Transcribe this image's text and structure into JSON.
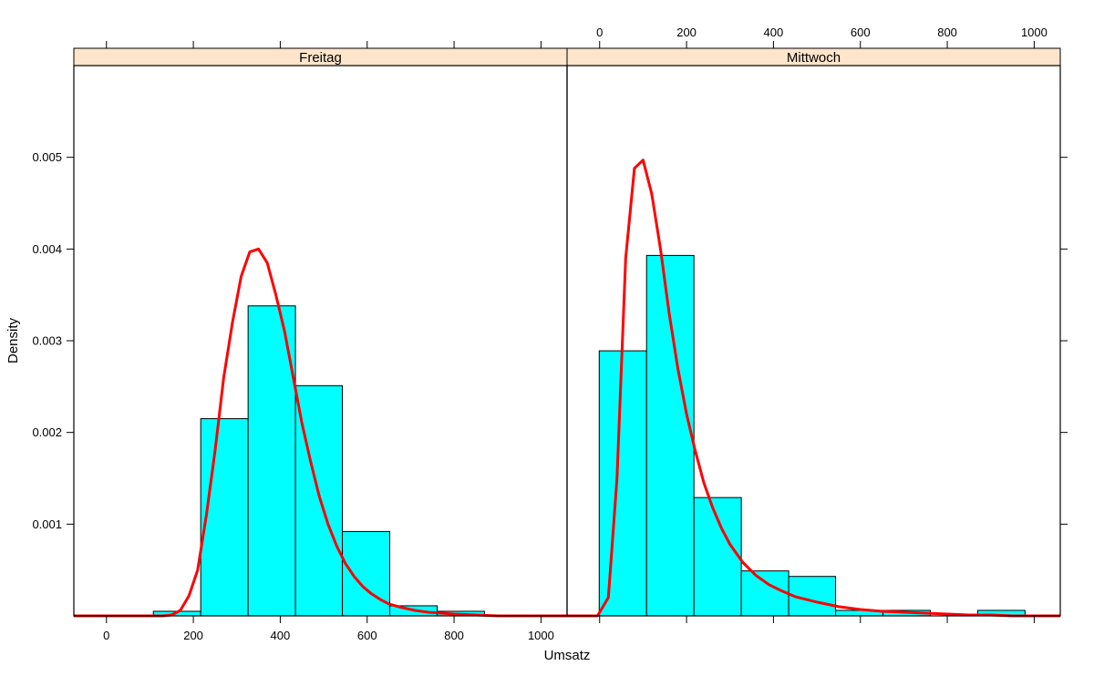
{
  "chart_data": {
    "type": "bar",
    "subtype": "lattice histogram with density curves",
    "xlabel": "Umsatz",
    "ylabel": "Density",
    "xlim": [
      -75,
      1060
    ],
    "ylim": [
      0,
      0.006
    ],
    "x_ticks": [
      0,
      200,
      400,
      600,
      800,
      1000
    ],
    "y_ticks": [
      0.001,
      0.002,
      0.003,
      0.004,
      0.005
    ],
    "y_tick_labels": [
      "0.001",
      "0.002",
      "0.003",
      "0.004",
      "0.005"
    ],
    "bin_edges": [
      -1,
      108,
      217,
      326,
      435,
      543,
      652,
      761,
      870,
      979
    ],
    "colors": {
      "bars": "#00ffff",
      "curve": "#ff0000",
      "strip": "#ffe5cc"
    },
    "panels": [
      {
        "strip": "Freitag",
        "x_ticks_shown": "bottom",
        "bar_values": [
          0,
          5e-05,
          0.00215,
          0.00338,
          0.00251,
          0.00092,
          0.00011,
          5e-05,
          0
        ],
        "curve": {
          "x": [
            -75,
            0,
            50,
            100,
            130,
            150,
            170,
            190,
            210,
            230,
            250,
            270,
            290,
            310,
            330,
            350,
            370,
            390,
            410,
            430,
            450,
            470,
            490,
            510,
            530,
            550,
            570,
            590,
            610,
            630,
            650,
            680,
            710,
            740,
            770,
            800,
            850,
            900,
            950,
            1060
          ],
          "y": [
            0,
            0,
            0,
            0,
            0,
            1e-05,
            6e-05,
            0.00022,
            0.0005,
            0.0011,
            0.0018,
            0.0026,
            0.0032,
            0.0037,
            0.00397,
            0.004,
            0.00385,
            0.0035,
            0.0031,
            0.0026,
            0.0021,
            0.00168,
            0.0013,
            0.001,
            0.00076,
            0.00057,
            0.00043,
            0.00032,
            0.00024,
            0.00018,
            0.00013,
            9e-05,
            6e-05,
            4e-05,
            3e-05,
            2e-05,
            1e-05,
            0,
            0,
            0
          ]
        }
      },
      {
        "strip": "Mittwoch",
        "x_ticks_shown": "top",
        "bar_values": [
          0.00289,
          0.00393,
          0.00129,
          0.00049,
          0.00043,
          6e-05,
          6e-05,
          0,
          6e-05
        ],
        "curve": {
          "x": [
            -75,
            -5,
            20,
            40,
            60,
            80,
            100,
            120,
            140,
            160,
            180,
            200,
            220,
            240,
            260,
            280,
            300,
            330,
            360,
            390,
            420,
            450,
            500,
            550,
            600,
            650,
            700,
            750,
            800,
            850,
            900,
            950,
            1000,
            1060
          ],
          "y": [
            0,
            0,
            0.0002,
            0.0015,
            0.0039,
            0.00488,
            0.00497,
            0.0046,
            0.004,
            0.0033,
            0.0027,
            0.0022,
            0.0018,
            0.00145,
            0.00118,
            0.00096,
            0.00078,
            0.00058,
            0.00044,
            0.00034,
            0.00027,
            0.00021,
            0.00015,
            0.0001,
            7e-05,
            5e-05,
            4e-05,
            3e-05,
            2e-05,
            1e-05,
            1e-05,
            0,
            0,
            0
          ]
        }
      }
    ]
  }
}
